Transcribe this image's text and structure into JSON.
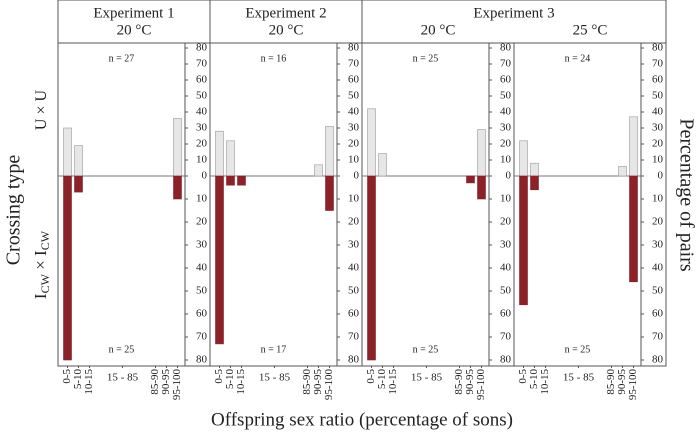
{
  "experiments": [
    {
      "title": "Experiment 1",
      "panels": [
        0
      ]
    },
    {
      "title": "Experiment 2",
      "panels": [
        1
      ]
    },
    {
      "title": "Experiment 3",
      "panels": [
        2,
        3
      ]
    }
  ],
  "axes": {
    "ylabel_left": "Crossing type",
    "ylabel_right": "Percentage of pairs",
    "xlabel": "Offspring sex ratio (percentage of sons)",
    "row_labels": [
      [
        "U × U"
      ],
      [
        "I",
        "CW",
        " × ",
        "I",
        "CW"
      ]
    ]
  },
  "chart_data": [
    {
      "type": "bar",
      "subtitle": "20 °C",
      "categories": [
        "0-5",
        "5-10",
        "10-15",
        "15 - 85",
        "85-90",
        "90-95",
        "95-100"
      ],
      "ylim": [
        0,
        80
      ],
      "yticks": [
        0,
        10,
        20,
        30,
        40,
        50,
        60,
        70,
        80
      ],
      "series": [
        {
          "direction": "up",
          "color": "#e6e6e6",
          "n_label": "n = 27",
          "values": [
            30,
            19,
            0,
            0,
            0,
            0,
            36
          ]
        },
        {
          "direction": "down",
          "color": "#8b2129",
          "n_label": "n = 25",
          "values": [
            80,
            7,
            0,
            0,
            0,
            0,
            10
          ]
        }
      ]
    },
    {
      "type": "bar",
      "subtitle": "20 °C",
      "categories": [
        "0-5",
        "5-10",
        "10-15",
        "15 - 85",
        "85-90",
        "90-95",
        "95-100"
      ],
      "ylim": [
        0,
        80
      ],
      "yticks": [
        0,
        10,
        20,
        30,
        40,
        50,
        60,
        70,
        80
      ],
      "series": [
        {
          "direction": "up",
          "color": "#e6e6e6",
          "n_label": "n = 16",
          "values": [
            28,
            22,
            0,
            0,
            0,
            7,
            31
          ]
        },
        {
          "direction": "down",
          "color": "#8b2129",
          "n_label": "n = 17",
          "values": [
            73,
            4,
            4,
            0,
            0,
            0,
            15
          ]
        }
      ]
    },
    {
      "type": "bar",
      "subtitle": "20 °C",
      "categories": [
        "0-5",
        "5-10",
        "10-15",
        "15 - 85",
        "85-90",
        "90-95",
        "95-100"
      ],
      "ylim": [
        0,
        80
      ],
      "yticks": [
        0,
        10,
        20,
        30,
        40,
        50,
        60,
        70,
        80
      ],
      "series": [
        {
          "direction": "up",
          "color": "#e6e6e6",
          "n_label": "n = 25",
          "values": [
            42,
            14,
            0,
            0,
            0,
            0,
            29
          ]
        },
        {
          "direction": "down",
          "color": "#8b2129",
          "n_label": "n = 25",
          "values": [
            80,
            0,
            0,
            0,
            0,
            3,
            10
          ]
        }
      ]
    },
    {
      "type": "bar",
      "subtitle": "25 °C",
      "categories": [
        "0-5",
        "5-10",
        "10-15",
        "15 - 85",
        "85-90",
        "90-95",
        "95-100"
      ],
      "ylim": [
        0,
        80
      ],
      "yticks": [
        0,
        10,
        20,
        30,
        40,
        50,
        60,
        70,
        80
      ],
      "series": [
        {
          "direction": "up",
          "color": "#e6e6e6",
          "n_label": "n = 24",
          "values": [
            22,
            8,
            0,
            0,
            0,
            6,
            37
          ]
        },
        {
          "direction": "down",
          "color": "#8b2129",
          "n_label": "n = 25",
          "values": [
            56,
            6,
            0,
            0,
            0,
            0,
            46
          ]
        }
      ]
    }
  ]
}
